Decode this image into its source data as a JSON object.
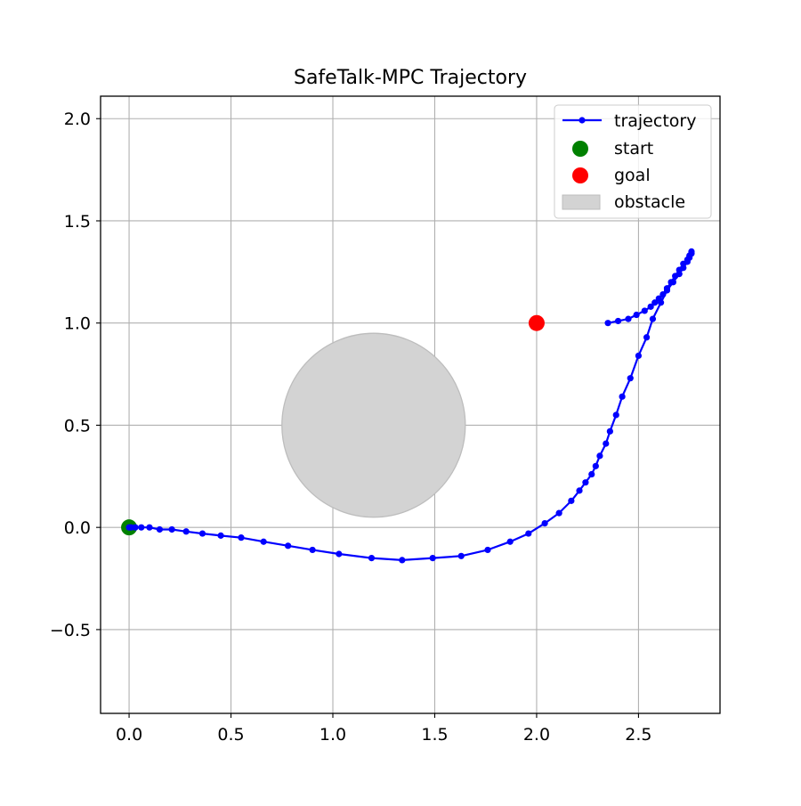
{
  "chart_data": {
    "type": "line",
    "title": "SafeTalk-MPC Trajectory",
    "xlabel": "",
    "ylabel": "",
    "xlim": [
      -0.14,
      2.9
    ],
    "ylim": [
      -0.91,
      2.11
    ],
    "xticks": [
      0.0,
      0.5,
      1.0,
      1.5,
      2.0,
      2.5
    ],
    "xtick_labels": [
      "0.0",
      "0.5",
      "1.0",
      "1.5",
      "2.0",
      "2.5"
    ],
    "yticks": [
      -0.5,
      0.0,
      0.5,
      1.0,
      1.5,
      2.0
    ],
    "ytick_labels": [
      "−0.5",
      "0.0",
      "0.5",
      "1.0",
      "1.5",
      "2.0"
    ],
    "grid": true,
    "legend_position": "top-right",
    "series": [
      {
        "name": "trajectory",
        "color": "#0000ff",
        "marker": "circle",
        "x": [
          0.0,
          0.01,
          0.03,
          0.06,
          0.1,
          0.15,
          0.21,
          0.28,
          0.36,
          0.45,
          0.55,
          0.66,
          0.78,
          0.9,
          1.03,
          1.19,
          1.34,
          1.49,
          1.63,
          1.76,
          1.87,
          1.96,
          2.04,
          2.11,
          2.17,
          2.21,
          2.24,
          2.27,
          2.29,
          2.31,
          2.34,
          2.36,
          2.39,
          2.42,
          2.46,
          2.5,
          2.54,
          2.57,
          2.61,
          2.64,
          2.67,
          2.7,
          2.72,
          2.74,
          2.75,
          2.76,
          2.76,
          2.75,
          2.74,
          2.72,
          2.7,
          2.68,
          2.66,
          2.64,
          2.62,
          2.6,
          2.58,
          2.56,
          2.53,
          2.49,
          2.45,
          2.4,
          2.35
        ],
        "y": [
          0.0,
          0.0,
          0.0,
          0.0,
          0.0,
          -0.01,
          -0.01,
          -0.02,
          -0.03,
          -0.04,
          -0.05,
          -0.07,
          -0.09,
          -0.11,
          -0.13,
          -0.15,
          -0.16,
          -0.15,
          -0.14,
          -0.11,
          -0.07,
          -0.03,
          0.02,
          0.07,
          0.13,
          0.18,
          0.22,
          0.26,
          0.3,
          0.35,
          0.41,
          0.47,
          0.55,
          0.64,
          0.73,
          0.84,
          0.93,
          1.02,
          1.1,
          1.16,
          1.2,
          1.24,
          1.27,
          1.3,
          1.32,
          1.34,
          1.35,
          1.33,
          1.31,
          1.29,
          1.26,
          1.23,
          1.2,
          1.17,
          1.14,
          1.12,
          1.1,
          1.08,
          1.06,
          1.04,
          1.02,
          1.01,
          1.0
        ]
      }
    ],
    "start": {
      "name": "start",
      "x": 0.0,
      "y": 0.0,
      "color": "#008000"
    },
    "goal": {
      "name": "goal",
      "x": 2.0,
      "y": 1.0,
      "color": "#ff0000"
    },
    "obstacle": {
      "name": "obstacle",
      "cx": 1.2,
      "cy": 0.5,
      "r": 0.45,
      "color": "#d3d3d3"
    }
  }
}
